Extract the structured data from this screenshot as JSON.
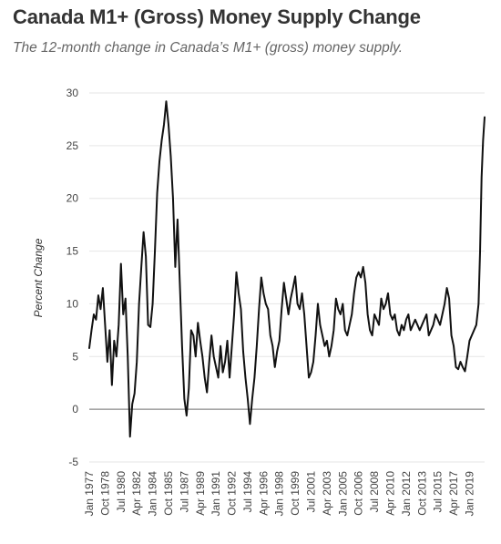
{
  "chart_data": {
    "type": "line",
    "title": "Canada M1+ (Gross) Money Supply Change",
    "subtitle": "The 12-month change in Canada’s M1+ (gross) money supply.",
    "xlabel": "",
    "ylabel": "Percent Change",
    "ylim": [
      -5,
      30
    ],
    "yticks": [
      30,
      25,
      20,
      15,
      10,
      5,
      0,
      -5
    ],
    "x_range": [
      "1977-01",
      "2020-09"
    ],
    "xtick_labels": [
      "Jan 1977",
      "Oct 1978",
      "Jul 1980",
      "Apr 1982",
      "Jan 1984",
      "Oct 1985",
      "Jul 1987",
      "Apr 1989",
      "Jan 1991",
      "Oct 1992",
      "Jul 1994",
      "Apr 1996",
      "Jan 1998",
      "Oct 1999",
      "Jul 2001",
      "Apr 2003",
      "Jan 2005",
      "Oct 2006",
      "Jul 2008",
      "Apr 2010",
      "Jan 2012",
      "Oct 2013",
      "Jul 2015",
      "Apr 2017",
      "Jan 2019"
    ],
    "grid": "horizontal",
    "line_color": "#111111",
    "series": [
      {
        "values": [
          [
            "1977-01",
            5.8
          ],
          [
            "1977-04",
            7.5
          ],
          [
            "1977-07",
            9.0
          ],
          [
            "1977-10",
            8.5
          ],
          [
            "1978-01",
            10.8
          ],
          [
            "1978-04",
            9.5
          ],
          [
            "1978-07",
            11.5
          ],
          [
            "1978-10",
            8.0
          ],
          [
            "1979-01",
            4.5
          ],
          [
            "1979-04",
            7.5
          ],
          [
            "1979-07",
            2.3
          ],
          [
            "1979-10",
            6.5
          ],
          [
            "1980-01",
            5.0
          ],
          [
            "1980-04",
            8.0
          ],
          [
            "1980-07",
            13.8
          ],
          [
            "1980-10",
            9.0
          ],
          [
            "1981-01",
            10.5
          ],
          [
            "1981-04",
            5.0
          ],
          [
            "1981-07",
            -2.6
          ],
          [
            "1981-10",
            0.5
          ],
          [
            "1982-01",
            1.5
          ],
          [
            "1982-04",
            4.5
          ],
          [
            "1982-07",
            10.0
          ],
          [
            "1982-10",
            13.5
          ],
          [
            "1983-01",
            16.8
          ],
          [
            "1983-04",
            14.5
          ],
          [
            "1983-07",
            8.0
          ],
          [
            "1983-10",
            7.8
          ],
          [
            "1984-01",
            10.0
          ],
          [
            "1984-04",
            15.0
          ],
          [
            "1984-07",
            20.5
          ],
          [
            "1984-10",
            23.5
          ],
          [
            "1985-01",
            25.5
          ],
          [
            "1985-04",
            27.0
          ],
          [
            "1985-07",
            29.2
          ],
          [
            "1985-10",
            27.0
          ],
          [
            "1986-01",
            24.0
          ],
          [
            "1986-04",
            20.0
          ],
          [
            "1986-07",
            13.5
          ],
          [
            "1986-10",
            18.0
          ],
          [
            "1987-01",
            12.0
          ],
          [
            "1987-04",
            6.0
          ],
          [
            "1987-07",
            1.0
          ],
          [
            "1987-10",
            -0.6
          ],
          [
            "1988-01",
            2.0
          ],
          [
            "1988-04",
            7.5
          ],
          [
            "1988-07",
            7.0
          ],
          [
            "1988-10",
            5.0
          ],
          [
            "1989-01",
            8.2
          ],
          [
            "1989-04",
            6.5
          ],
          [
            "1989-07",
            5.0
          ],
          [
            "1989-10",
            3.0
          ],
          [
            "1990-01",
            1.6
          ],
          [
            "1990-04",
            4.5
          ],
          [
            "1990-07",
            7.0
          ],
          [
            "1990-10",
            5.0
          ],
          [
            "1991-01",
            4.0
          ],
          [
            "1991-04",
            3.0
          ],
          [
            "1991-07",
            6.0
          ],
          [
            "1991-10",
            3.5
          ],
          [
            "1992-01",
            4.5
          ],
          [
            "1992-04",
            6.5
          ],
          [
            "1992-07",
            3.0
          ],
          [
            "1992-10",
            6.0
          ],
          [
            "1993-01",
            9.0
          ],
          [
            "1993-04",
            13.0
          ],
          [
            "1993-07",
            11.0
          ],
          [
            "1993-10",
            9.5
          ],
          [
            "1994-01",
            5.5
          ],
          [
            "1994-04",
            3.0
          ],
          [
            "1994-07",
            1.0
          ],
          [
            "1994-10",
            -1.4
          ],
          [
            "1995-01",
            1.0
          ],
          [
            "1995-04",
            3.0
          ],
          [
            "1995-07",
            6.0
          ],
          [
            "1995-10",
            9.5
          ],
          [
            "1996-01",
            12.5
          ],
          [
            "1996-04",
            11.0
          ],
          [
            "1996-07",
            10.0
          ],
          [
            "1996-10",
            9.5
          ],
          [
            "1997-01",
            7.0
          ],
          [
            "1997-04",
            6.0
          ],
          [
            "1997-07",
            4.0
          ],
          [
            "1997-10",
            5.5
          ],
          [
            "1998-01",
            6.5
          ],
          [
            "1998-04",
            9.5
          ],
          [
            "1998-07",
            12.0
          ],
          [
            "1998-10",
            10.5
          ],
          [
            "1999-01",
            9.0
          ],
          [
            "1999-04",
            10.5
          ],
          [
            "1999-07",
            11.5
          ],
          [
            "1999-10",
            12.6
          ],
          [
            "2000-01",
            10.0
          ],
          [
            "2000-04",
            9.5
          ],
          [
            "2000-07",
            11.0
          ],
          [
            "2000-10",
            9.0
          ],
          [
            "2001-01",
            6.0
          ],
          [
            "2001-04",
            3.0
          ],
          [
            "2001-07",
            3.5
          ],
          [
            "2001-10",
            4.5
          ],
          [
            "2002-01",
            7.0
          ],
          [
            "2002-04",
            10.0
          ],
          [
            "2002-07",
            8.0
          ],
          [
            "2002-10",
            7.0
          ],
          [
            "2003-01",
            6.0
          ],
          [
            "2003-04",
            6.5
          ],
          [
            "2003-07",
            5.0
          ],
          [
            "2003-10",
            6.0
          ],
          [
            "2004-01",
            7.5
          ],
          [
            "2004-04",
            10.5
          ],
          [
            "2004-07",
            9.5
          ],
          [
            "2004-10",
            9.0
          ],
          [
            "2005-01",
            10.0
          ],
          [
            "2005-04",
            7.5
          ],
          [
            "2005-07",
            7.0
          ],
          [
            "2005-10",
            8.0
          ],
          [
            "2006-01",
            9.0
          ],
          [
            "2006-04",
            11.0
          ],
          [
            "2006-07",
            12.5
          ],
          [
            "2006-10",
            13.0
          ],
          [
            "2007-01",
            12.5
          ],
          [
            "2007-04",
            13.5
          ],
          [
            "2007-07",
            12.0
          ],
          [
            "2007-10",
            9.0
          ],
          [
            "2008-01",
            7.5
          ],
          [
            "2008-04",
            7.0
          ],
          [
            "2008-07",
            9.0
          ],
          [
            "2008-10",
            8.5
          ],
          [
            "2009-01",
            8.0
          ],
          [
            "2009-04",
            10.5
          ],
          [
            "2009-07",
            9.5
          ],
          [
            "2009-10",
            10.0
          ],
          [
            "2010-01",
            11.0
          ],
          [
            "2010-04",
            9.0
          ],
          [
            "2010-07",
            8.5
          ],
          [
            "2010-10",
            9.0
          ],
          [
            "2011-01",
            7.5
          ],
          [
            "2011-04",
            7.0
          ],
          [
            "2011-07",
            8.0
          ],
          [
            "2011-10",
            7.5
          ],
          [
            "2012-01",
            8.5
          ],
          [
            "2012-04",
            9.0
          ],
          [
            "2012-07",
            7.5
          ],
          [
            "2012-10",
            8.0
          ],
          [
            "2013-01",
            8.5
          ],
          [
            "2013-04",
            8.0
          ],
          [
            "2013-07",
            7.5
          ],
          [
            "2013-10",
            8.0
          ],
          [
            "2014-01",
            8.5
          ],
          [
            "2014-04",
            9.0
          ],
          [
            "2014-07",
            7.0
          ],
          [
            "2014-10",
            7.5
          ],
          [
            "2015-01",
            8.0
          ],
          [
            "2015-04",
            9.0
          ],
          [
            "2015-07",
            8.5
          ],
          [
            "2015-10",
            8.0
          ],
          [
            "2016-01",
            9.0
          ],
          [
            "2016-04",
            10.0
          ],
          [
            "2016-07",
            11.5
          ],
          [
            "2016-10",
            10.5
          ],
          [
            "2017-01",
            7.0
          ],
          [
            "2017-04",
            6.0
          ],
          [
            "2017-07",
            4.0
          ],
          [
            "2017-10",
            3.8
          ],
          [
            "2018-01",
            4.5
          ],
          [
            "2018-04",
            4.0
          ],
          [
            "2018-07",
            3.6
          ],
          [
            "2018-10",
            5.0
          ],
          [
            "2019-01",
            6.5
          ],
          [
            "2019-04",
            7.0
          ],
          [
            "2019-07",
            7.5
          ],
          [
            "2019-10",
            8.0
          ],
          [
            "2020-01",
            10.0
          ],
          [
            "2020-03",
            15.0
          ],
          [
            "2020-05",
            22.0
          ],
          [
            "2020-07",
            25.5
          ],
          [
            "2020-09",
            27.7
          ]
        ]
      }
    ]
  }
}
